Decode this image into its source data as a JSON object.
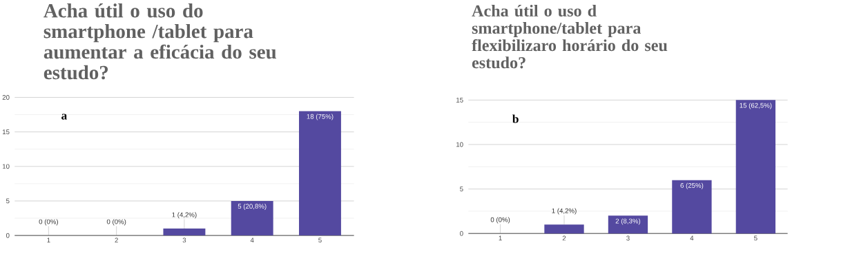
{
  "chart_data": [
    {
      "type": "bar",
      "title": "Acha útil o uso do smartphone /tablet para aumentar a eficácia do seu estudo?",
      "categories": [
        "1",
        "2",
        "3",
        "4",
        "5"
      ],
      "values": [
        0,
        0,
        1,
        5,
        18
      ],
      "value_labels": [
        "0 (0%)",
        "0 (0%)",
        "1 (4,2%)",
        "5 (20,8%)",
        "18 (75%)"
      ],
      "color": "#5449a0",
      "ylim": [
        0,
        20
      ],
      "yticks": [
        0,
        5,
        10,
        15,
        20
      ],
      "grid": "y",
      "annotations": [
        "a"
      ]
    },
    {
      "type": "bar",
      "title": "Acha útil o uso d smartphone/tablet para flexibilizaro horário do seu estudo?",
      "categories": [
        "1",
        "2",
        "3",
        "4",
        "5"
      ],
      "values": [
        0,
        1,
        2,
        6,
        15
      ],
      "value_labels": [
        "0 (0%)",
        "1 (4,2%)",
        "2 (8,3%)",
        "6 (25%)",
        "15 (62,5%)"
      ],
      "color": "#5449a0",
      "ylim": [
        0,
        15
      ],
      "yticks": [
        0,
        5,
        10,
        15
      ],
      "grid": "y",
      "annotations": [
        "b"
      ]
    }
  ]
}
